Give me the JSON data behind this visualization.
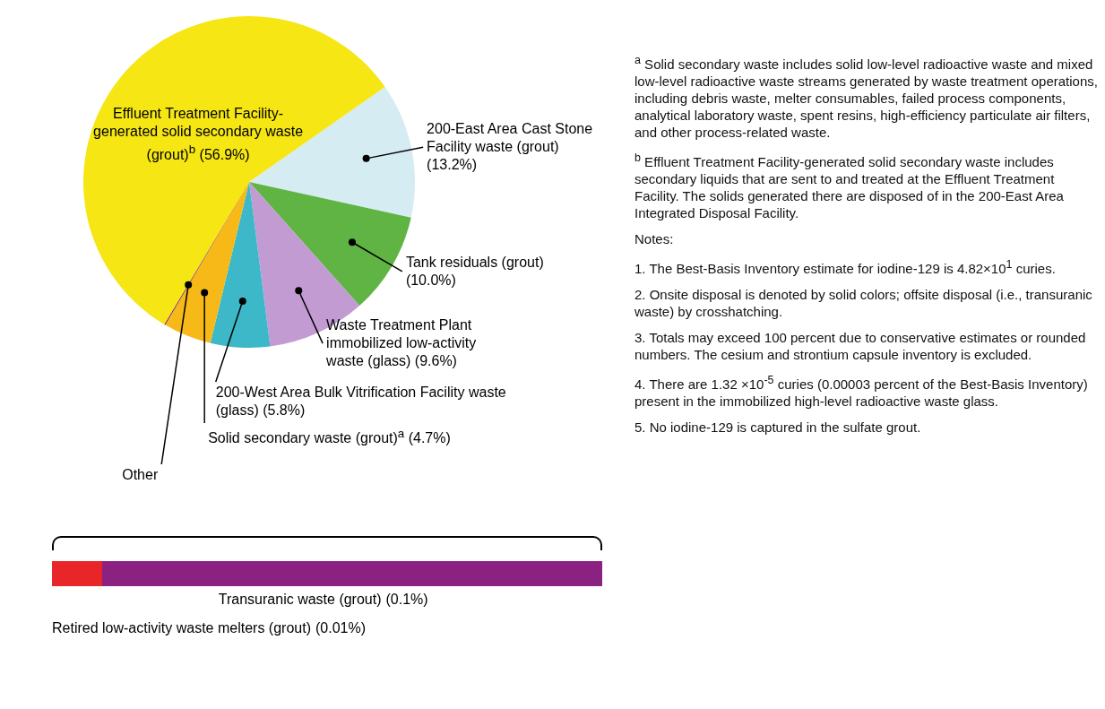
{
  "chart_data": [
    {
      "type": "pie",
      "categories": [
        "200-East Area Cast Stone Facility waste (grout)",
        "Tank residuals (grout)",
        "Waste Treatment Plant immobilized low-activity waste (glass)",
        "200-West Area Bulk Vitrification Facility waste (glass)",
        "Solid secondary waste (grout)$^{a}$",
        "Other",
        "Effluent Treatment Facility-generated solid secondary waste (grout)$^{b}$"
      ],
      "values": [
        13.2,
        10.0,
        9.6,
        5.8,
        4.7,
        0.11,
        56.9
      ],
      "value_labels": [
        "(13.2%)",
        "(10.0%)",
        "(9.6%)",
        "(5.8%)",
        "(4.7%)",
        null,
        "(56.9%)"
      ],
      "colors": [
        "#d6ecf3",
        "#5fb443",
        "#c39bd3",
        "#3cb8c8",
        "#f7b918",
        "#7a1f6e",
        "#f5e614"
      ],
      "annotations": [
        "$^{a}$ Solid secondary waste includes solid low-level radioactive waste and mixed low-level radioactive waste streams generated by waste treatment operations, including debris waste, melter consumables, failed process components, analytical laboratory waste, spent resins, high-efficiency particulate air filters, and other process-related waste.",
        "$^{b}$ Effluent Treatment Facility-generated solid secondary waste includes secondary liquids that are sent to and treated at the Effluent Treatment Facility. The solids generated there are disposed of in the 200-East Area Integrated Disposal Facility.",
        "Notes:",
        "1. The Best-Basis Inventory estimate for iodine-129 is 4.82×10$^{1}$ curies.",
        "2. Onsite disposal is denoted by solid colors; offsite disposal (i.e., transuranic waste) by crosshatching.",
        "3. Totals may exceed 100 percent due to conservative estimates or rounded numbers. The cesium and strontium capsule inventory is excluded.",
        "4. There are 1.32 ×10$^{-5}$ curies (0.00003 percent of the Best-Basis Inventory) present in the immobilized high-level radioactive waste glass.",
        "5. No iodine-129 is captured in the sulfate grout."
      ]
    },
    {
      "type": "other",
      "categories": [
        "Retired low-activity waste melters (grout)",
        "Transuranic waste (grout)"
      ],
      "values": [
        0.01,
        0.1
      ],
      "value_labels": [
        "(0.01%)",
        "(0.1%)"
      ],
      "colors": [
        "#e8262a",
        "#8b2282"
      ]
    }
  ]
}
